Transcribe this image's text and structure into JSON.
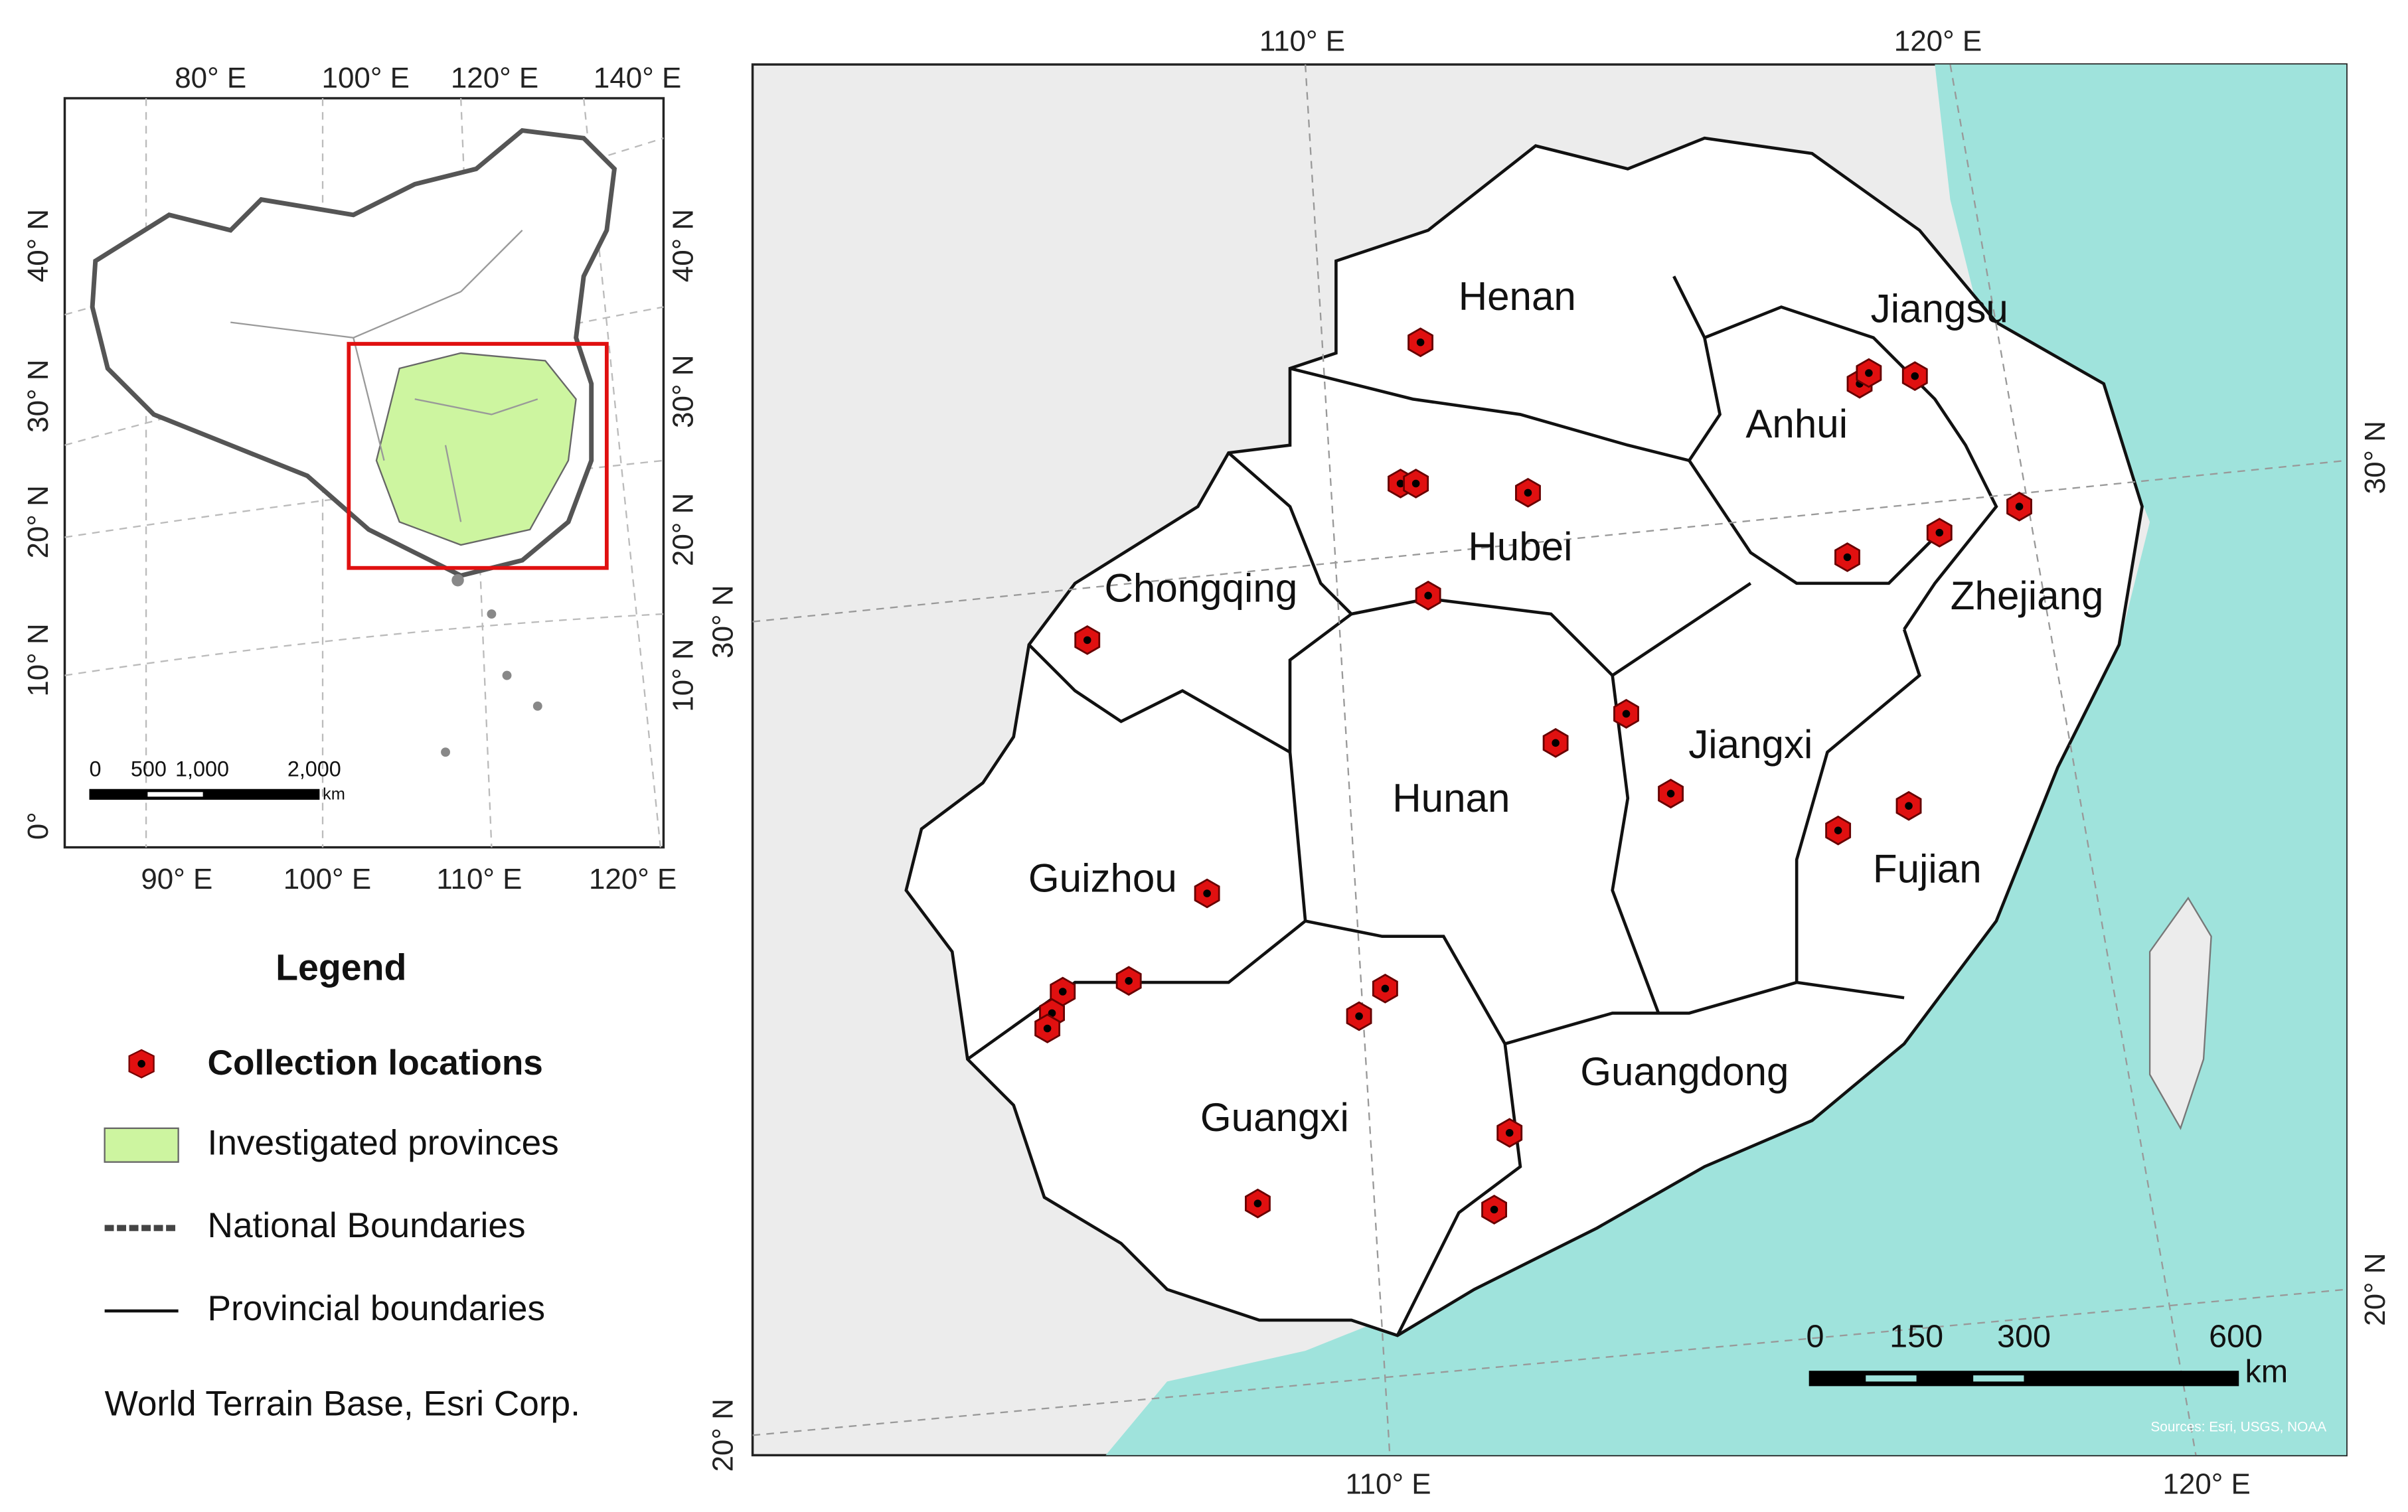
{
  "inset_map": {
    "top_labels": [
      "80° E",
      "100° E",
      "120° E",
      "140° E"
    ],
    "bottom_labels": [
      "90° E",
      "100° E",
      "110° E",
      "120° E"
    ],
    "left_labels": [
      "40° N",
      "30° N",
      "20° N",
      "10° N",
      "0°"
    ],
    "right_labels": [
      "40° N",
      "30° N",
      "20° N",
      "10° N"
    ],
    "scale_labels": [
      "0",
      "500",
      "1,000",
      "2,000",
      "km"
    ]
  },
  "main_map": {
    "top_labels": [
      "110° E",
      "120° E"
    ],
    "bottom_labels": [
      "110° E",
      "120° E"
    ],
    "left_labels": [
      "30° N",
      "20° N"
    ],
    "right_labels": [
      "30° N",
      "20° N"
    ],
    "provinces": [
      "Henan",
      "Jiangsu",
      "Anhui",
      "Hubei",
      "Chongqing",
      "Zhejiang",
      "Jiangxi",
      "Hunan",
      "Fujian",
      "Guizhou",
      "Guangdong",
      "Guangxi"
    ],
    "scale_labels": [
      "0",
      "150",
      "300",
      "600",
      "km"
    ],
    "source": "Sources: Esri, USGS, NOAA"
  },
  "legend": {
    "title": "Legend",
    "items": [
      "Collection locations",
      "Investigated provinces",
      "National Boundaries",
      "Provincial boundaries"
    ]
  },
  "credit": "World Terrain Base, Esri Corp."
}
